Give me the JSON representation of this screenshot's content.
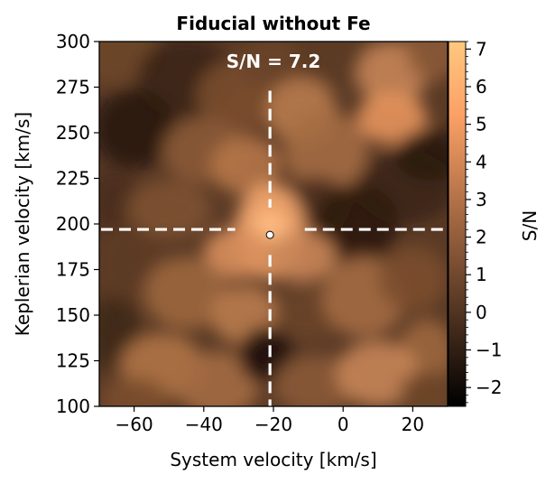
{
  "chart_data": {
    "type": "heatmap",
    "title": "Fiducial without Fe",
    "xlabel": "System velocity [km/s]",
    "ylabel": "Keplerian velocity [km/s]",
    "colorbar_label": "S/N",
    "annotation": "S/N = 7.2",
    "xlim": [
      -70,
      30
    ],
    "ylim": [
      100,
      300
    ],
    "x_ticks": [
      -60,
      -40,
      -20,
      0,
      20
    ],
    "x_tick_labels": [
      "−60",
      "−40",
      "−20",
      "0",
      "20"
    ],
    "y_ticks": [
      100,
      125,
      150,
      175,
      200,
      225,
      250,
      275,
      300
    ],
    "y_tick_labels": [
      "100",
      "125",
      "150",
      "175",
      "200",
      "225",
      "250",
      "275",
      "300"
    ],
    "colorbar_range": [
      -2.5,
      7.2
    ],
    "colorbar_ticks": [
      -2,
      -1,
      0,
      1,
      2,
      3,
      4,
      5,
      6,
      7
    ],
    "colorbar_tick_labels": [
      "−2",
      "−1",
      "0",
      "1",
      "2",
      "3",
      "4",
      "5",
      "6",
      "7"
    ],
    "colormap": "copper",
    "peak": {
      "x": -21,
      "y": 194,
      "value": 7.2
    },
    "crosshair": {
      "x": -21,
      "y": 197
    },
    "colors": {
      "peak_marker": "#ffffff",
      "crosshair": "#ffffff",
      "frame": "#000000"
    }
  }
}
